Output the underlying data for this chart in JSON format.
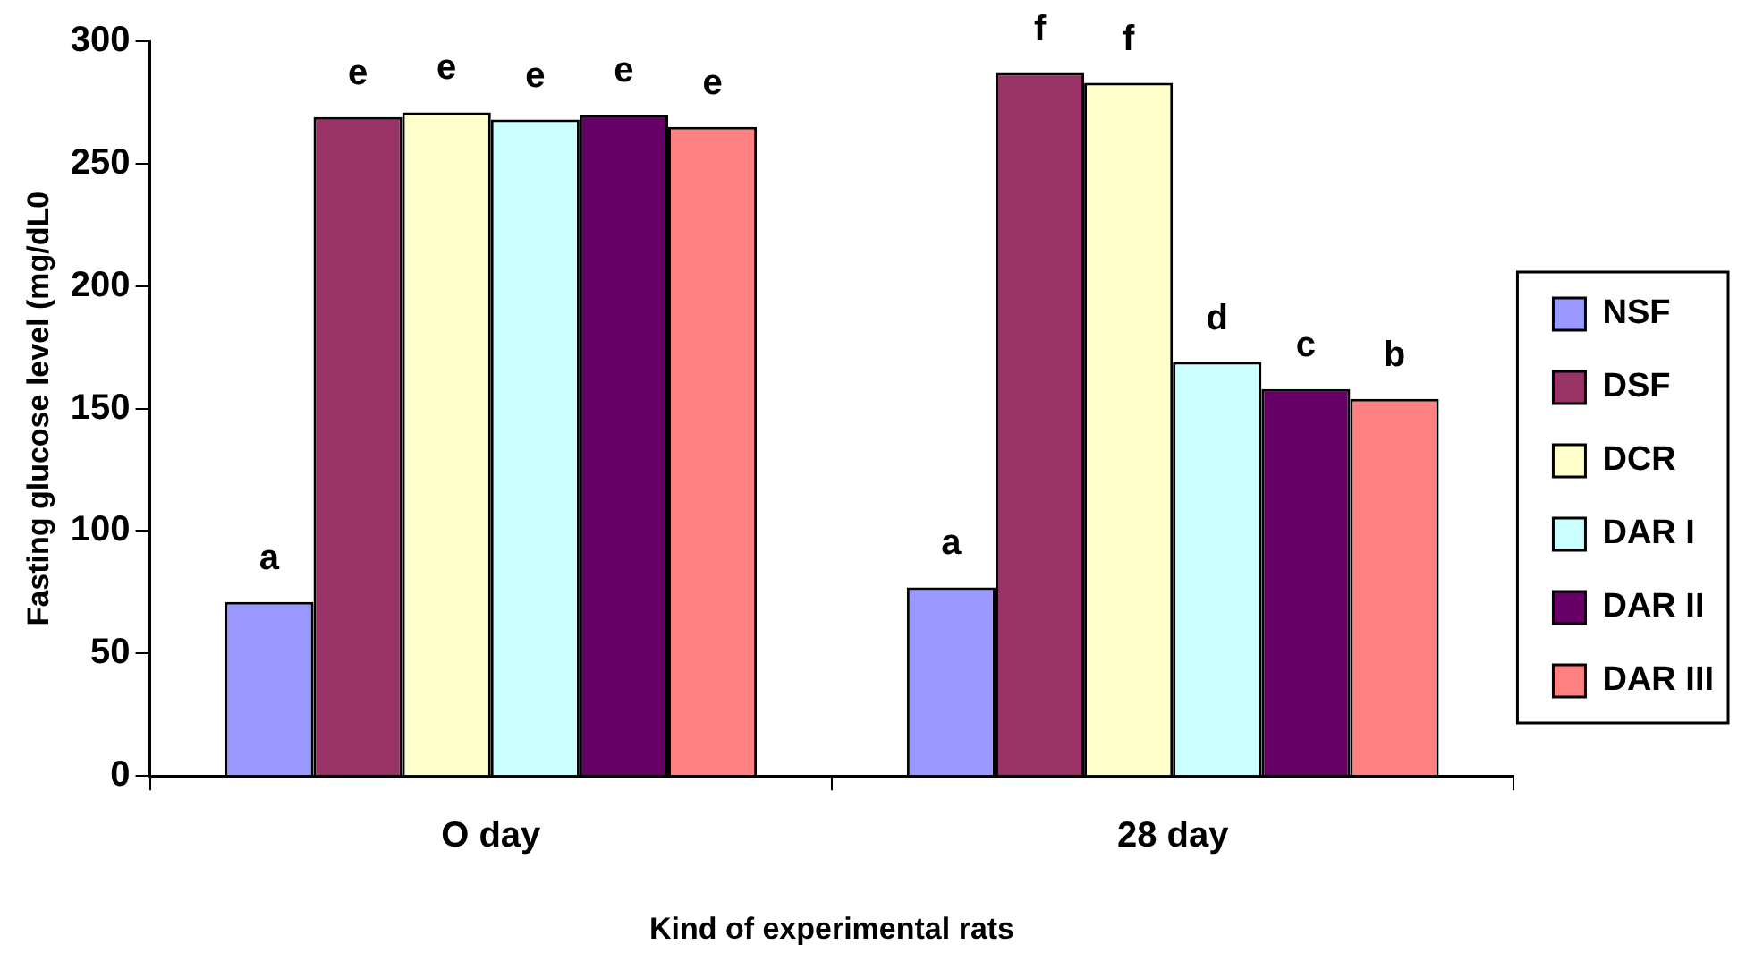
{
  "chart_data": {
    "type": "bar",
    "xlabel": "Kind of experimental rats",
    "ylabel": "Fasting glucose level (mg/dL0",
    "categories": [
      "O day",
      "28 day"
    ],
    "series": [
      {
        "name": "NSF",
        "color": "#9999ff",
        "values": [
          71,
          77
        ],
        "value_labels": [
          "a",
          "a"
        ]
      },
      {
        "name": "DSF",
        "color": "#993366",
        "values": [
          269,
          287
        ],
        "value_labels": [
          "e",
          "f"
        ]
      },
      {
        "name": "DCR",
        "color": "#ffffcc",
        "values": [
          271,
          283
        ],
        "value_labels": [
          "e",
          "f"
        ]
      },
      {
        "name": "DAR I",
        "color": "#ccffff",
        "values": [
          268,
          169
        ],
        "value_labels": [
          "e",
          "d"
        ]
      },
      {
        "name": "DAR II",
        "color": "#660066",
        "values": [
          270,
          158
        ],
        "value_labels": [
          "e",
          "c"
        ]
      },
      {
        "name": "DAR III",
        "color": "#ff8080",
        "values": [
          265,
          154
        ],
        "value_labels": [
          "e",
          "b"
        ]
      }
    ],
    "ylim": [
      0,
      300
    ],
    "yticks": [
      0,
      50,
      100,
      150,
      200,
      250,
      300
    ],
    "grid": false,
    "legend": "right"
  }
}
